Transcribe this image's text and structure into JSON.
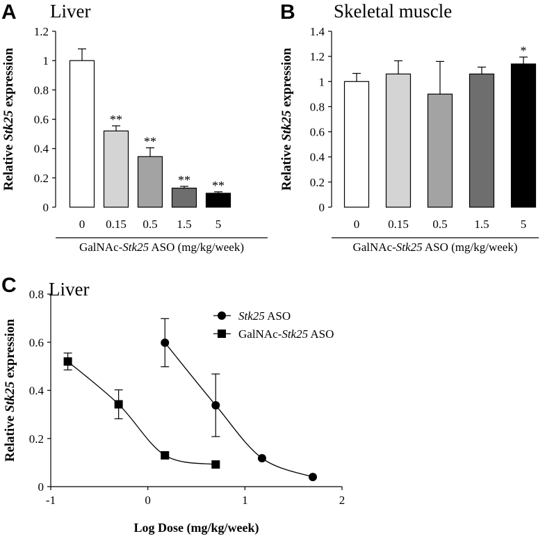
{
  "chart_data": [
    {
      "panel": "A",
      "type": "bar",
      "title": "Liver",
      "ylabel_prefix": "Relative ",
      "ylabel_gene": "Stk25",
      "ylabel_suffix": " expression",
      "xlabel_prefix": "GalNAc-",
      "xlabel_gene": "Stk25",
      "xlabel_suffix": " ASO (mg/kg/week)",
      "categories": [
        "0",
        "0.15",
        "0.5",
        "1.5",
        "5"
      ],
      "values": [
        1.0,
        0.52,
        0.345,
        0.13,
        0.095
      ],
      "errors": [
        0.08,
        0.035,
        0.06,
        0.012,
        0.01
      ],
      "significance": [
        "",
        "**",
        "**",
        "**",
        "**"
      ],
      "bar_colors": [
        "#ffffff",
        "#d4d4d4",
        "#a3a3a3",
        "#6e6e6e",
        "#000000"
      ],
      "ylim": [
        0,
        1.2
      ],
      "yticks": [
        "0",
        "0.2",
        "0.4",
        "0.6",
        "0.8",
        "1",
        "1.2"
      ]
    },
    {
      "panel": "B",
      "type": "bar",
      "title": "Skeletal muscle",
      "ylabel_prefix": "Relative ",
      "ylabel_gene": "Stk25",
      "ylabel_suffix": " expression",
      "xlabel_prefix": "GalNAc-",
      "xlabel_gene": "Stk25",
      "xlabel_suffix": " ASO (mg/kg/week)",
      "categories": [
        "0",
        "0.15",
        "0.5",
        "1.5",
        "5"
      ],
      "values": [
        1.0,
        1.06,
        0.9,
        1.06,
        1.14
      ],
      "errors": [
        0.065,
        0.105,
        0.26,
        0.055,
        0.055
      ],
      "significance": [
        "",
        "",
        "",
        "",
        "*"
      ],
      "bar_colors": [
        "#ffffff",
        "#d4d4d4",
        "#a3a3a3",
        "#6e6e6e",
        "#000000"
      ],
      "ylim": [
        0,
        1.4
      ],
      "yticks": [
        "0",
        "0.2",
        "0.4",
        "0.6",
        "0.8",
        "1",
        "1.2",
        "1.4"
      ]
    },
    {
      "panel": "C",
      "type": "scatter",
      "title": "Liver",
      "ylabel_prefix": "Relative ",
      "ylabel_gene": "Stk25",
      "ylabel_suffix": " expression",
      "xlabel": "Log Dose (mg/kg/week)",
      "xlim": [
        -1,
        2
      ],
      "ylim": [
        0,
        0.8
      ],
      "xticks": [
        "-1",
        "0",
        "1",
        "2"
      ],
      "yticks": [
        "0",
        "0.2",
        "0.4",
        "0.6",
        "0.8"
      ],
      "series": [
        {
          "gene": "Stk25",
          "name_prefix": "",
          "name_suffix": " ASO",
          "marker": "circle",
          "x": [
            0.176,
            0.699,
            1.176,
            1.699
          ],
          "y": [
            0.598,
            0.338,
            0.118,
            0.04
          ],
          "errors": [
            0.1,
            0.13,
            0,
            0
          ]
        },
        {
          "gene": "Stk25",
          "name_prefix": "GalNAc-",
          "name_suffix": " ASO",
          "marker": "square",
          "x": [
            -0.824,
            -0.301,
            0.176,
            0.699
          ],
          "y": [
            0.52,
            0.342,
            0.13,
            0.092
          ],
          "errors": [
            0.035,
            0.06,
            0,
            0
          ]
        }
      ]
    }
  ]
}
